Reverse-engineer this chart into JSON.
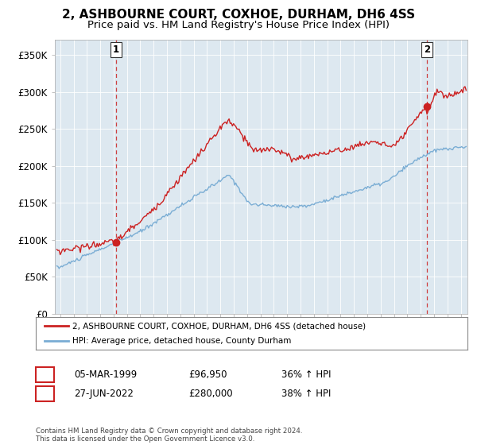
{
  "title": "2, ASHBOURNE COURT, COXHOE, DURHAM, DH6 4SS",
  "subtitle": "Price paid vs. HM Land Registry's House Price Index (HPI)",
  "ylim": [
    0,
    370000
  ],
  "yticks": [
    0,
    50000,
    100000,
    150000,
    200000,
    250000,
    300000,
    350000
  ],
  "ytick_labels": [
    "£0",
    "£50K",
    "£100K",
    "£150K",
    "£200K",
    "£250K",
    "£300K",
    "£350K"
  ],
  "legend_entry1": "2, ASHBOURNE COURT, COXHOE, DURHAM, DH6 4SS (detached house)",
  "legend_entry2": "HPI: Average price, detached house, County Durham",
  "sale1_date": "05-MAR-1999",
  "sale1_price": 96950,
  "sale1_pct": "36% ↑ HPI",
  "sale2_date": "27-JUN-2022",
  "sale2_price": 280000,
  "sale2_pct": "38% ↑ HPI",
  "footer": "Contains HM Land Registry data © Crown copyright and database right 2024.\nThis data is licensed under the Open Government Licence v3.0.",
  "red_color": "#cc2222",
  "blue_color": "#7aadd4",
  "background_color": "#ffffff",
  "plot_bg_color": "#dde8f0",
  "grid_color": "#ffffff",
  "title_fontsize": 11,
  "subtitle_fontsize": 9.5,
  "sale1_x": 1999.17,
  "sale2_x": 2022.46,
  "xlim_left": 1994.6,
  "xlim_right": 2025.5
}
